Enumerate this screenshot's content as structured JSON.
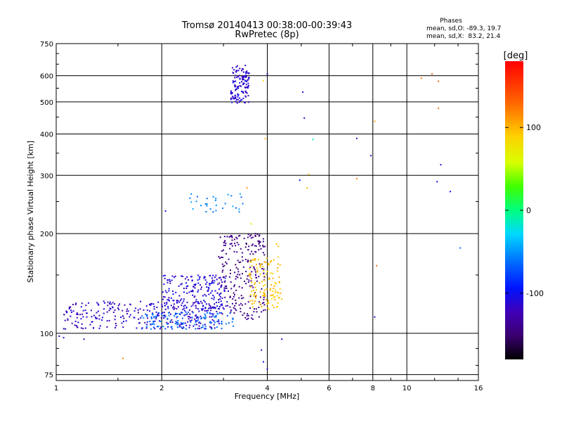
{
  "chart_data": {
    "type": "scatter",
    "title": "Tromsø 20140413 00:38:00-00:39:43",
    "subtitle": "RwPretec (8p)",
    "xlabel": "Frequency [MHz]",
    "ylabel": "Stationary phase Virtual Height [km]",
    "x_scale": "log",
    "y_scale": "log",
    "xlim": [
      1,
      16
    ],
    "ylim": [
      72,
      750
    ],
    "x_ticks": [
      {
        "value": 1,
        "label": "1"
      },
      {
        "value": 2,
        "label": "2"
      },
      {
        "value": 4,
        "label": "4"
      },
      {
        "value": 6,
        "label": "6"
      },
      {
        "value": 8,
        "label": "8"
      },
      {
        "value": 10,
        "label": "10"
      },
      {
        "value": 16,
        "label": "16"
      }
    ],
    "y_ticks": [
      {
        "value": 75,
        "label": "75"
      },
      {
        "value": 100,
        "label": "100"
      },
      {
        "value": 200,
        "label": "200"
      },
      {
        "value": 300,
        "label": "300"
      },
      {
        "value": 400,
        "label": "400"
      },
      {
        "value": 500,
        "label": "500"
      },
      {
        "value": 600,
        "label": "600"
      },
      {
        "value": 750,
        "label": "750"
      }
    ],
    "grid": true,
    "phase_stats": {
      "heading": "Phases",
      "line_o": "mean, sd,O: -89.3, 19.7",
      "line_x": "mean, sd,X:  83.2, 21.4"
    },
    "colorbar": {
      "label": "[deg]",
      "range": [
        -180,
        180
      ],
      "ticks": [
        {
          "value": 100,
          "label": "100"
        },
        {
          "value": 0,
          "label": "0"
        },
        {
          "value": -100,
          "label": "-100"
        }
      ]
    },
    "clusters": [
      {
        "f_range": [
          3.15,
          3.55
        ],
        "h_range": [
          495,
          645
        ],
        "n": 130,
        "phase": -112,
        "phase_sd": 12
      },
      {
        "f_range": [
          2.4,
          3.45
        ],
        "h_range": [
          230,
          265
        ],
        "n": 30,
        "phase": -55,
        "phase_sd": 12
      },
      {
        "f_range": [
          1.05,
          3.0
        ],
        "h_range": [
          103,
          125
        ],
        "n": 280,
        "phase": -115,
        "phase_sd": 12
      },
      {
        "f_range": [
          1.75,
          3.2
        ],
        "h_range": [
          103,
          116
        ],
        "n": 120,
        "phase": -65,
        "phase_sd": 15
      },
      {
        "f_range": [
          2.0,
          3.1
        ],
        "h_range": [
          118,
          150
        ],
        "n": 200,
        "phase": -110,
        "phase_sd": 14
      },
      {
        "f_range": [
          2.9,
          3.95
        ],
        "h_range": [
          110,
          200
        ],
        "n": 230,
        "phase": -140,
        "phase_sd": 12
      },
      {
        "f_range": [
          3.55,
          4.4
        ],
        "h_range": [
          118,
          170
        ],
        "n": 130,
        "phase": 95,
        "phase_sd": 10
      }
    ],
    "points": [
      {
        "x": 1.02,
        "y": 98,
        "phase": -115
      },
      {
        "x": 1.05,
        "y": 97,
        "phase": -115
      },
      {
        "x": 1.2,
        "y": 96,
        "phase": -120
      },
      {
        "x": 1.55,
        "y": 84,
        "phase": 120
      },
      {
        "x": 2.05,
        "y": 234,
        "phase": -100
      },
      {
        "x": 3.9,
        "y": 82,
        "phase": -100
      },
      {
        "x": 4.0,
        "y": 78,
        "phase": -110
      },
      {
        "x": 3.85,
        "y": 89,
        "phase": -110
      },
      {
        "x": 4.4,
        "y": 96,
        "phase": -110
      },
      {
        "x": 4.0,
        "y": 607,
        "phase": -120
      },
      {
        "x": 3.9,
        "y": 580,
        "phase": 80
      },
      {
        "x": 3.95,
        "y": 387,
        "phase": 100
      },
      {
        "x": 5.05,
        "y": 535,
        "phase": -115
      },
      {
        "x": 5.1,
        "y": 447,
        "phase": -115
      },
      {
        "x": 5.4,
        "y": 385,
        "phase": -15
      },
      {
        "x": 4.95,
        "y": 290,
        "phase": -100
      },
      {
        "x": 5.25,
        "y": 302,
        "phase": 100
      },
      {
        "x": 5.2,
        "y": 275,
        "phase": 100
      },
      {
        "x": 3.5,
        "y": 275,
        "phase": 110
      },
      {
        "x": 7.2,
        "y": 388,
        "phase": -115
      },
      {
        "x": 7.2,
        "y": 293,
        "phase": 120
      },
      {
        "x": 7.9,
        "y": 344,
        "phase": -120
      },
      {
        "x": 8.1,
        "y": 437,
        "phase": 100
      },
      {
        "x": 8.1,
        "y": 112,
        "phase": -115
      },
      {
        "x": 8.2,
        "y": 160,
        "phase": 130
      },
      {
        "x": 11.0,
        "y": 590,
        "phase": 120
      },
      {
        "x": 11.8,
        "y": 607,
        "phase": 130
      },
      {
        "x": 12.3,
        "y": 577,
        "phase": 130
      },
      {
        "x": 12.3,
        "y": 478,
        "phase": 125
      },
      {
        "x": 12.5,
        "y": 323,
        "phase": -115
      },
      {
        "x": 12.2,
        "y": 287,
        "phase": -100
      },
      {
        "x": 13.3,
        "y": 268,
        "phase": -100
      },
      {
        "x": 14.2,
        "y": 181,
        "phase": -60
      },
      {
        "x": 3.7,
        "y": 200,
        "phase": -150
      },
      {
        "x": 3.75,
        "y": 199,
        "phase": -150
      },
      {
        "x": 3.8,
        "y": 198,
        "phase": -150
      },
      {
        "x": 3.6,
        "y": 214,
        "phase": 80
      },
      {
        "x": 4.25,
        "y": 186,
        "phase": 95
      },
      {
        "x": 4.3,
        "y": 183,
        "phase": 95
      }
    ]
  }
}
